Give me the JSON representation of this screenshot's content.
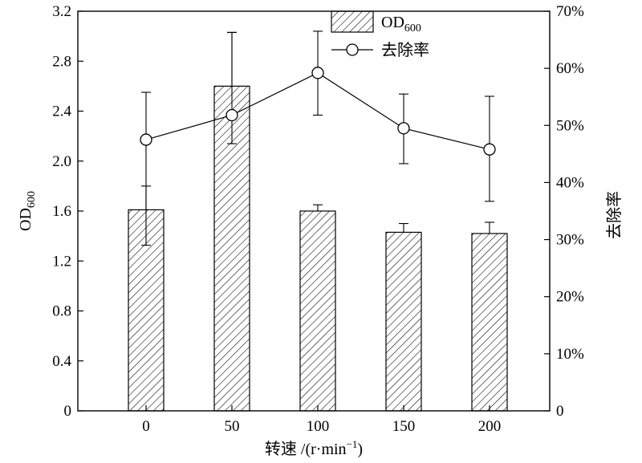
{
  "chart_data": {
    "type": "bar+line",
    "categories": [
      "0",
      "50",
      "100",
      "150",
      "200"
    ],
    "xlabel": {
      "main": "转速 /(r·min",
      "sup": "−1",
      "close": ")"
    },
    "left_axis": {
      "label_main": "OD",
      "label_sub": "600",
      "ylim": [
        0,
        3.2
      ],
      "ticks": [
        "0",
        "0.4",
        "0.8",
        "1.2",
        "1.6",
        "2.0",
        "2.4",
        "2.8",
        "3.2"
      ]
    },
    "right_axis": {
      "label": "去除率",
      "ylim": [
        0,
        70
      ],
      "ticks": [
        "0",
        "10%",
        "20%",
        "30%",
        "40%",
        "50%",
        "60%",
        "70%"
      ]
    },
    "series": [
      {
        "name": "OD",
        "name_sub": "600",
        "kind": "bar",
        "axis": "left",
        "values": [
          1.61,
          2.6,
          1.6,
          1.43,
          1.42
        ],
        "error_upper": [
          1.8,
          3.03,
          1.65,
          1.5,
          1.51
        ],
        "pattern": "diagonal-hatch"
      },
      {
        "name": "去除率",
        "kind": "line",
        "axis": "right",
        "marker": "open-circle",
        "values": [
          47.5,
          51.8,
          59.2,
          49.5,
          45.8
        ],
        "error_low": [
          29.0,
          46.8,
          51.8,
          43.3,
          36.7
        ],
        "error_high": [
          55.8,
          66.3,
          66.5,
          55.5,
          55.1
        ]
      }
    ],
    "legend_position": "top-center"
  }
}
